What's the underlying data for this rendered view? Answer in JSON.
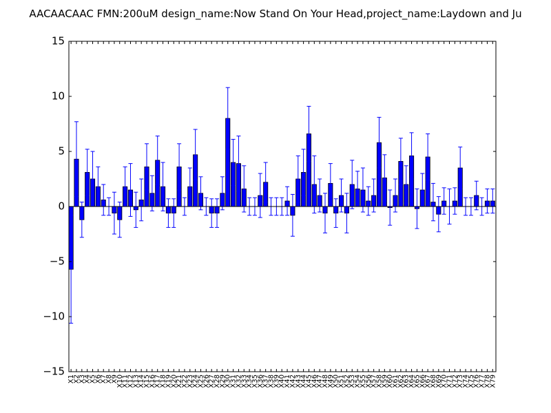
{
  "chart_data": {
    "type": "bar",
    "title": "AACAACAAC  FMN:200uM  design_name:Now Stand On Your Head,project_name:Laydown and Ju",
    "xlabel": "",
    "ylabel": "",
    "ylim": [
      -15,
      15
    ],
    "yticks": [
      -15,
      -10,
      -5,
      0,
      5,
      10,
      15
    ],
    "yticklabels": [
      "−15",
      "−10",
      "−5",
      "0",
      "5",
      "10",
      "15"
    ],
    "grid": false,
    "bar_color": "#0000ff",
    "error_color": "#0000ff",
    "categories": [
      "X1",
      "X2",
      "X3",
      "X4",
      "X5",
      "X6",
      "X7",
      "X8",
      "X9",
      "X10",
      "X11",
      "X12",
      "X13",
      "X14",
      "X15",
      "X16",
      "X17",
      "X18",
      "X19",
      "X20",
      "X21",
      "X22",
      "X23",
      "X24",
      "X25",
      "X26",
      "X27",
      "X28",
      "X29",
      "X30",
      "X31",
      "X32",
      "X33",
      "X34",
      "X35",
      "X36",
      "X37",
      "X38",
      "X39",
      "X40",
      "X41",
      "X42",
      "X43",
      "X44",
      "X45",
      "X46",
      "X47",
      "X48",
      "X49",
      "X50",
      "X51",
      "X52",
      "X53",
      "X54",
      "X55",
      "X56",
      "X57",
      "X58",
      "X59",
      "X60",
      "X61",
      "X62",
      "X63",
      "X64",
      "X65",
      "X66",
      "X67",
      "X68",
      "X69",
      "X70",
      "X71",
      "X72",
      "X73",
      "X74",
      "X75",
      "X76",
      "X77",
      "X78",
      "X79"
    ],
    "values": [
      -5.7,
      4.3,
      -1.2,
      3.1,
      2.5,
      1.8,
      0.6,
      0.0,
      -0.6,
      -1.2,
      1.8,
      1.5,
      -0.3,
      0.6,
      3.6,
      1.2,
      4.2,
      1.8,
      -0.6,
      -0.6,
      3.6,
      0.0,
      1.8,
      4.7,
      1.2,
      0.0,
      -0.6,
      -0.6,
      1.2,
      8.0,
      4.0,
      3.9,
      1.6,
      0.0,
      0.0,
      1.0,
      2.2,
      0.0,
      0.0,
      0.0,
      0.5,
      -0.8,
      2.5,
      3.1,
      6.6,
      2.0,
      1.0,
      -0.6,
      2.1,
      -0.6,
      1.0,
      -0.6,
      2.0,
      1.6,
      1.5,
      0.5,
      1.0,
      5.8,
      2.6,
      -0.1,
      1.0,
      4.1,
      2.0,
      4.6,
      -0.2,
      1.5,
      4.5,
      0.4,
      -0.7,
      0.5,
      0.0,
      0.5,
      3.5,
      0.0,
      0.0,
      1.0,
      0.0,
      0.5,
      0.5
    ],
    "errors": [
      4.9,
      3.4,
      1.6,
      2.1,
      2.5,
      1.8,
      1.4,
      0.8,
      1.9,
      1.6,
      1.8,
      2.4,
      1.6,
      1.9,
      2.1,
      1.6,
      2.2,
      2.2,
      1.3,
      1.3,
      2.1,
      0.8,
      1.7,
      2.3,
      1.5,
      0.8,
      1.3,
      1.3,
      1.5,
      2.8,
      2.1,
      2.5,
      2.1,
      0.8,
      0.8,
      2.0,
      1.8,
      0.8,
      0.8,
      0.8,
      1.3,
      1.9,
      2.1,
      2.1,
      2.5,
      2.6,
      1.5,
      1.8,
      1.8,
      1.3,
      1.5,
      1.8,
      2.2,
      1.6,
      2.0,
      1.3,
      1.5,
      2.3,
      2.1,
      1.6,
      1.5,
      2.1,
      1.7,
      2.1,
      1.8,
      1.5,
      2.1,
      1.7,
      1.6,
      1.2,
      1.6,
      1.2,
      1.9,
      0.8,
      0.8,
      1.3,
      0.8,
      1.1,
      1.1
    ]
  }
}
